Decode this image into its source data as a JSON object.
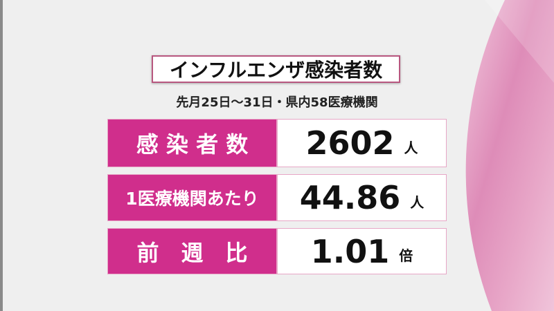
{
  "title": "インフルエンザ感染者数",
  "subtitle": "先月25日～31日・県内58医療機関",
  "rows": [
    {
      "label": "感 染 者 数",
      "value": "2602",
      "unit": "人"
    },
    {
      "label": "1医療機関あたり",
      "value": "44.86",
      "unit": "人"
    },
    {
      "label": "前　週　比",
      "value": "1.01",
      "unit": "倍"
    }
  ],
  "colors": {
    "accent": "#d02e8c",
    "background": "#efefef"
  }
}
